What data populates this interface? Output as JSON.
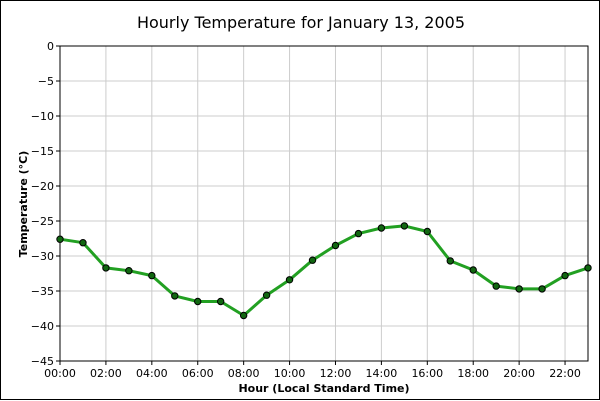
{
  "chart_data": {
    "type": "line",
    "title": "Hourly Temperature for January 13, 2005",
    "xlabel": "Hour (Local Standard Time)",
    "ylabel": "Temperature (°C)",
    "xlim": [
      0,
      23
    ],
    "ylim": [
      -45,
      0
    ],
    "x_ticks": [
      {
        "value": 0,
        "label": "00:00"
      },
      {
        "value": 2,
        "label": "02:00"
      },
      {
        "value": 4,
        "label": "04:00"
      },
      {
        "value": 6,
        "label": "06:00"
      },
      {
        "value": 8,
        "label": "08:00"
      },
      {
        "value": 10,
        "label": "10:00"
      },
      {
        "value": 12,
        "label": "12:00"
      },
      {
        "value": 14,
        "label": "14:00"
      },
      {
        "value": 16,
        "label": "16:00"
      },
      {
        "value": 18,
        "label": "18:00"
      },
      {
        "value": 20,
        "label": "20:00"
      },
      {
        "value": 22,
        "label": "22:00"
      }
    ],
    "y_ticks": [
      {
        "value": 0,
        "label": "0"
      },
      {
        "value": -5,
        "label": "−5"
      },
      {
        "value": -10,
        "label": "−10"
      },
      {
        "value": -15,
        "label": "−15"
      },
      {
        "value": -20,
        "label": "−20"
      },
      {
        "value": -25,
        "label": "−25"
      },
      {
        "value": -30,
        "label": "−30"
      },
      {
        "value": -35,
        "label": "−35"
      },
      {
        "value": -40,
        "label": "−40"
      },
      {
        "value": -45,
        "label": "−45"
      }
    ],
    "grid": true,
    "legend": "none",
    "line_color": "#22a022",
    "marker_color": "#116611",
    "series": [
      {
        "x": [
          0,
          1,
          2,
          3,
          4,
          5,
          6,
          7,
          8,
          9,
          10,
          11,
          12,
          13,
          14,
          15,
          16,
          17,
          18,
          19,
          20,
          21,
          22,
          23
        ],
        "values": [
          -27.6,
          -28.1,
          -31.7,
          -32.1,
          -32.8,
          -35.7,
          -36.5,
          -36.5,
          -38.5,
          -35.6,
          -33.4,
          -30.6,
          -28.5,
          -26.8,
          -26.0,
          -25.7,
          -26.5,
          -30.7,
          -32.0,
          -34.3,
          -34.7,
          -34.7,
          -32.8,
          -31.7
        ]
      }
    ]
  }
}
